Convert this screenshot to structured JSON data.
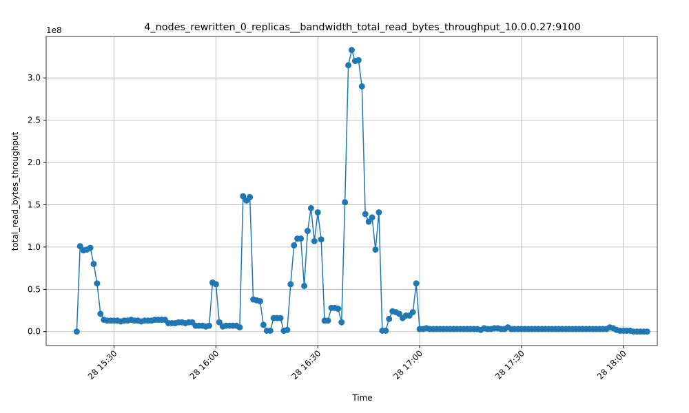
{
  "chart_data": {
    "type": "line",
    "title": "4_nodes_rewritten_0_replicas__bandwidth_total_read_bytes_throughput_10.0.0.27:9100",
    "x_label": "Time",
    "y_label": "total_read_bytes_throughput",
    "y_offset_label": "1e8",
    "x": [
      "28 15:19",
      "28 15:20",
      "28 15:21",
      "28 15:22",
      "28 15:23",
      "28 15:24",
      "28 15:25",
      "28 15:26",
      "28 15:27",
      "28 15:28",
      "28 15:29",
      "28 15:30",
      "28 15:31",
      "28 15:32",
      "28 15:33",
      "28 15:34",
      "28 15:35",
      "28 15:36",
      "28 15:37",
      "28 15:38",
      "28 15:39",
      "28 15:40",
      "28 15:41",
      "28 15:42",
      "28 15:43",
      "28 15:44",
      "28 15:45",
      "28 15:46",
      "28 15:47",
      "28 15:48",
      "28 15:49",
      "28 15:50",
      "28 15:51",
      "28 15:52",
      "28 15:53",
      "28 15:54",
      "28 15:55",
      "28 15:56",
      "28 15:57",
      "28 15:58",
      "28 15:59",
      "28 16:00",
      "28 16:01",
      "28 16:02",
      "28 16:03",
      "28 16:04",
      "28 16:05",
      "28 16:06",
      "28 16:07",
      "28 16:08",
      "28 16:09",
      "28 16:10",
      "28 16:11",
      "28 16:12",
      "28 16:13",
      "28 16:14",
      "28 16:15",
      "28 16:16",
      "28 16:17",
      "28 16:18",
      "28 16:19",
      "28 16:20",
      "28 16:21",
      "28 16:22",
      "28 16:23",
      "28 16:24",
      "28 16:25",
      "28 16:26",
      "28 16:27",
      "28 16:28",
      "28 16:29",
      "28 16:30",
      "28 16:31",
      "28 16:32",
      "28 16:33",
      "28 16:34",
      "28 16:35",
      "28 16:36",
      "28 16:37",
      "28 16:38",
      "28 16:39",
      "28 16:40",
      "28 16:41",
      "28 16:42",
      "28 16:43",
      "28 16:44",
      "28 16:45",
      "28 16:46",
      "28 16:47",
      "28 16:48",
      "28 16:49",
      "28 16:50",
      "28 16:51",
      "28 16:52",
      "28 16:53",
      "28 16:54",
      "28 16:55",
      "28 16:56",
      "28 16:57",
      "28 16:58",
      "28 16:59",
      "28 17:00",
      "28 17:01",
      "28 17:02",
      "28 17:03",
      "28 17:04",
      "28 17:05",
      "28 17:06",
      "28 17:07",
      "28 17:08",
      "28 17:09",
      "28 17:10",
      "28 17:11",
      "28 17:12",
      "28 17:13",
      "28 17:14",
      "28 17:15",
      "28 17:16",
      "28 17:17",
      "28 17:18",
      "28 17:19",
      "28 17:20",
      "28 17:21",
      "28 17:22",
      "28 17:23",
      "28 17:24",
      "28 17:25",
      "28 17:26",
      "28 17:27",
      "28 17:28",
      "28 17:29",
      "28 17:30",
      "28 17:31",
      "28 17:32",
      "28 17:33",
      "28 17:34",
      "28 17:35",
      "28 17:36",
      "28 17:37",
      "28 17:38",
      "28 17:39",
      "28 17:40",
      "28 17:41",
      "28 17:42",
      "28 17:43",
      "28 17:44",
      "28 17:45",
      "28 17:46",
      "28 17:47",
      "28 17:48",
      "28 17:49",
      "28 17:50",
      "28 17:51",
      "28 17:52",
      "28 17:53",
      "28 17:54",
      "28 17:55",
      "28 17:56",
      "28 17:57",
      "28 17:58",
      "28 17:59",
      "28 18:00",
      "28 18:01",
      "28 18:02",
      "28 18:03",
      "28 18:04",
      "28 18:05",
      "28 18:06",
      "28 18:07"
    ],
    "series": [
      {
        "color": "#1f77b4",
        "values": [
          0.0,
          1.01,
          0.96,
          0.97,
          0.99,
          0.8,
          0.57,
          0.21,
          0.14,
          0.13,
          0.13,
          0.13,
          0.13,
          0.12,
          0.13,
          0.13,
          0.14,
          0.13,
          0.13,
          0.12,
          0.13,
          0.13,
          0.13,
          0.14,
          0.14,
          0.14,
          0.14,
          0.1,
          0.1,
          0.1,
          0.11,
          0.11,
          0.1,
          0.11,
          0.11,
          0.07,
          0.07,
          0.07,
          0.06,
          0.07,
          0.58,
          0.56,
          0.11,
          0.06,
          0.07,
          0.07,
          0.07,
          0.07,
          0.05,
          1.6,
          1.55,
          1.59,
          0.38,
          0.37,
          0.36,
          0.08,
          0.01,
          0.01,
          0.16,
          0.16,
          0.16,
          0.01,
          0.02,
          0.56,
          1.02,
          1.1,
          1.1,
          0.54,
          1.19,
          1.46,
          1.07,
          1.41,
          1.09,
          0.13,
          0.13,
          0.28,
          0.28,
          0.27,
          0.11,
          1.53,
          3.15,
          3.33,
          3.2,
          3.21,
          2.9,
          1.39,
          1.3,
          1.35,
          0.97,
          1.41,
          0.01,
          0.01,
          0.15,
          0.24,
          0.23,
          0.21,
          0.16,
          0.19,
          0.19,
          0.23,
          0.57,
          0.03,
          0.03,
          0.04,
          0.03,
          0.03,
          0.03,
          0.03,
          0.03,
          0.03,
          0.03,
          0.03,
          0.03,
          0.03,
          0.03,
          0.03,
          0.03,
          0.03,
          0.03,
          0.02,
          0.04,
          0.03,
          0.03,
          0.04,
          0.04,
          0.03,
          0.03,
          0.05,
          0.03,
          0.03,
          0.03,
          0.03,
          0.03,
          0.03,
          0.03,
          0.03,
          0.03,
          0.03,
          0.03,
          0.03,
          0.03,
          0.03,
          0.03,
          0.03,
          0.03,
          0.03,
          0.03,
          0.03,
          0.03,
          0.03,
          0.03,
          0.03,
          0.03,
          0.03,
          0.03,
          0.03,
          0.03,
          0.05,
          0.04,
          0.02,
          0.01,
          0.01,
          0.01,
          0.01,
          0.0,
          0.0,
          0.0,
          0.0,
          0.0
        ]
      }
    ],
    "xlim": [
      "28 15:10",
      "28 18:10"
    ],
    "xticks": [
      "28 15:30",
      "28 16:00",
      "28 16:30",
      "28 17:00",
      "28 17:30",
      "28 18:00"
    ],
    "ylim": [
      -0.165,
      3.49
    ],
    "yticks": [
      {
        "value": 0,
        "label": "0.0"
      },
      {
        "value": 0.5,
        "label": "0.5"
      },
      {
        "value": 1,
        "label": "1.0"
      },
      {
        "value": 1.5,
        "label": "1.5"
      },
      {
        "value": 2,
        "label": "2.0"
      },
      {
        "value": 2.5,
        "label": "2.5"
      },
      {
        "value": 3,
        "label": "3.0"
      }
    ],
    "grid": true
  }
}
